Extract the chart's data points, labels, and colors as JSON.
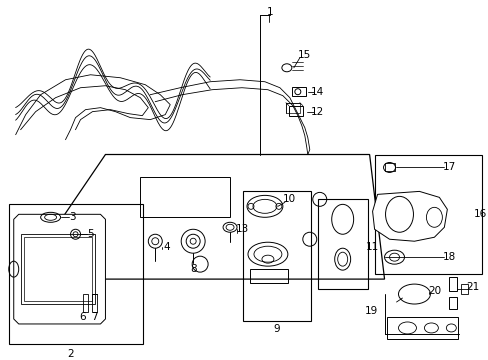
{
  "bg_color": "#ffffff",
  "line_color": "#000000",
  "figsize": [
    4.89,
    3.6
  ],
  "dpi": 100
}
